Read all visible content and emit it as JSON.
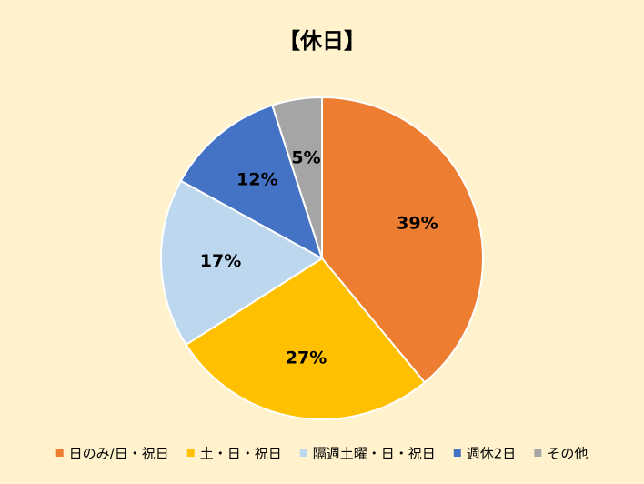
{
  "chart_data": {
    "type": "pie",
    "title": "【休日】",
    "categories": [
      "日のみ/日・祝日",
      "土・日・祝日",
      "隔週土曜・日・祝日",
      "週休2日",
      "その他"
    ],
    "values": [
      39,
      27,
      17,
      12,
      5
    ],
    "value_labels": [
      "39%",
      "27%",
      "17%",
      "12%",
      "5%"
    ],
    "colors": [
      "#ED7D31",
      "#FFC000",
      "#BDD7EE",
      "#4472C4",
      "#A5A5A5"
    ],
    "legend": "bottom"
  }
}
